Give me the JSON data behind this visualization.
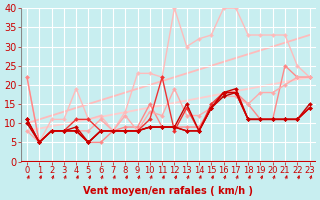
{
  "title": "",
  "xlabel": "Vent moyen/en rafales ( km/h )",
  "ylabel": "",
  "xlim": [
    -0.5,
    23.5
  ],
  "ylim": [
    0,
    40
  ],
  "yticks": [
    0,
    5,
    10,
    15,
    20,
    25,
    30,
    35,
    40
  ],
  "xticks": [
    0,
    1,
    2,
    3,
    4,
    5,
    6,
    7,
    8,
    9,
    10,
    11,
    12,
    13,
    14,
    15,
    16,
    17,
    18,
    19,
    20,
    21,
    22,
    23
  ],
  "bg_color": "#c8eef0",
  "grid_color": "#ffffff",
  "lines": [
    {
      "x": [
        0,
        1,
        2,
        3,
        4,
        5,
        6,
        7,
        8,
        9,
        10,
        11,
        12,
        13,
        14,
        15,
        16,
        17,
        18,
        19,
        20,
        21,
        22,
        23
      ],
      "y": [
        11,
        5,
        8,
        8,
        8,
        5,
        8,
        8,
        8,
        8,
        9,
        9,
        9,
        15,
        8,
        14,
        18,
        18,
        11,
        11,
        11,
        11,
        11,
        15
      ],
      "color": "#cc0000",
      "lw": 1.0,
      "marker": "D",
      "ms": 2.0,
      "zorder": 5
    },
    {
      "x": [
        0,
        1,
        2,
        3,
        4,
        5,
        6,
        7,
        8,
        9,
        10,
        11,
        12,
        13,
        14,
        15,
        16,
        17,
        18,
        19,
        20,
        21,
        22,
        23
      ],
      "y": [
        11,
        5,
        8,
        8,
        9,
        5,
        8,
        8,
        8,
        8,
        9,
        9,
        9,
        8,
        8,
        14,
        18,
        19,
        11,
        11,
        11,
        11,
        11,
        14
      ],
      "color": "#cc0000",
      "lw": 1.0,
      "marker": "D",
      "ms": 2.0,
      "zorder": 5
    },
    {
      "x": [
        0,
        1,
        2,
        3,
        4,
        5,
        6,
        7,
        8,
        9,
        10,
        11,
        12,
        13,
        14,
        15,
        16,
        17,
        18,
        19,
        20,
        21,
        22,
        23
      ],
      "y": [
        10,
        5,
        8,
        8,
        8,
        5,
        8,
        8,
        8,
        8,
        9,
        9,
        9,
        8,
        8,
        14,
        17,
        18,
        11,
        11,
        11,
        11,
        11,
        14
      ],
      "color": "#bb0000",
      "lw": 1.0,
      "marker": "D",
      "ms": 2.0,
      "zorder": 4
    },
    {
      "x": [
        0,
        1,
        2,
        3,
        4,
        5,
        6,
        7,
        8,
        9,
        10,
        11,
        12,
        13,
        14,
        15,
        16,
        17,
        18,
        19,
        20,
        21,
        22,
        23
      ],
      "y": [
        11,
        5,
        8,
        8,
        11,
        11,
        8,
        8,
        8,
        8,
        11,
        22,
        8,
        14,
        8,
        15,
        18,
        18,
        11,
        11,
        11,
        11,
        11,
        14
      ],
      "color": "#ee3333",
      "lw": 1.0,
      "marker": "D",
      "ms": 2.0,
      "zorder": 4
    },
    {
      "x": [
        0,
        1,
        2,
        3,
        4,
        5,
        6,
        7,
        8,
        9,
        10,
        11,
        12,
        13,
        14,
        15,
        16,
        17,
        18,
        19,
        20,
        21,
        22,
        23
      ],
      "y": [
        22,
        5,
        8,
        8,
        8,
        5,
        5,
        8,
        9,
        9,
        15,
        9,
        9,
        9,
        9,
        14,
        18,
        18,
        15,
        11,
        11,
        25,
        22,
        22
      ],
      "color": "#ff8888",
      "lw": 1.0,
      "marker": "D",
      "ms": 2.0,
      "zorder": 3
    },
    {
      "x": [
        0,
        1,
        2,
        3,
        4,
        5,
        6,
        7,
        8,
        9,
        10,
        11,
        12,
        13,
        14,
        15,
        16,
        17,
        18,
        19,
        20,
        21,
        22,
        23
      ],
      "y": [
        8,
        5,
        8,
        8,
        8,
        8,
        11,
        8,
        12,
        8,
        13,
        12,
        19,
        12,
        12,
        14,
        17,
        17,
        15,
        18,
        18,
        20,
        22,
        22
      ],
      "color": "#ffaaaa",
      "lw": 1.0,
      "marker": "D",
      "ms": 2.0,
      "zorder": 3
    },
    {
      "x": [
        0,
        1,
        2,
        3,
        4,
        5,
        6,
        7,
        8,
        9,
        10,
        11,
        12,
        13,
        14,
        15,
        16,
        17,
        18,
        19,
        20,
        21,
        22,
        23
      ],
      "y": [
        22,
        5,
        11,
        11,
        19,
        11,
        12,
        8,
        13,
        23,
        23,
        22,
        40,
        30,
        32,
        33,
        40,
        40,
        33,
        33,
        33,
        33,
        25,
        22
      ],
      "color": "#ffbbbb",
      "lw": 1.0,
      "marker": "D",
      "ms": 2.0,
      "zorder": 2
    },
    {
      "x": [
        0,
        23
      ],
      "y": [
        8,
        22
      ],
      "color": "#ffcccc",
      "lw": 1.3,
      "marker": null,
      "ms": 0,
      "zorder": 1
    },
    {
      "x": [
        0,
        23
      ],
      "y": [
        10,
        33
      ],
      "color": "#ffbbbb",
      "lw": 1.3,
      "marker": null,
      "ms": 0,
      "zorder": 1
    }
  ],
  "arrow_color": "#cc0000",
  "xlabel_color": "#cc0000",
  "xlabel_fontsize": 7,
  "tick_fontsize": 6,
  "tick_color": "#cc0000",
  "ytick_fontsize": 7
}
